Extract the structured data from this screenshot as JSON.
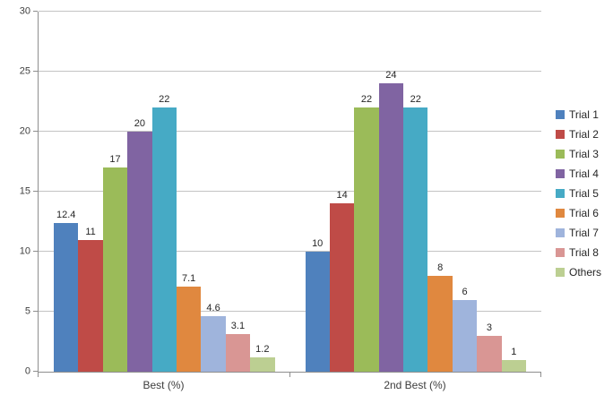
{
  "chart_data": {
    "type": "bar",
    "title": "",
    "xlabel": "",
    "ylabel": "",
    "categories": [
      "Best (%)",
      "2nd Best (%)"
    ],
    "series": [
      {
        "name": "Trial 1",
        "color": "#4F81BD",
        "values": [
          12.4,
          10
        ]
      },
      {
        "name": "Trial 2",
        "color": "#BF4B47",
        "values": [
          11,
          14
        ]
      },
      {
        "name": "Trial 3",
        "color": "#9BBB59",
        "values": [
          17,
          22
        ]
      },
      {
        "name": "Trial 4",
        "color": "#8064A2",
        "values": [
          20,
          24
        ]
      },
      {
        "name": "Trial 5",
        "color": "#46AAC5",
        "values": [
          22,
          22
        ]
      },
      {
        "name": "Trial 6",
        "color": "#E0883F",
        "values": [
          7.1,
          8
        ]
      },
      {
        "name": "Trial 7",
        "color": "#9FB4DC",
        "values": [
          4.6,
          6
        ]
      },
      {
        "name": "Trial 8",
        "color": "#D99694",
        "values": [
          3.1,
          3
        ]
      },
      {
        "name": "Others",
        "color": "#BCCF92",
        "values": [
          1.2,
          1
        ]
      }
    ],
    "ylim": [
      0,
      30
    ],
    "yticks": [
      0,
      5,
      10,
      15,
      20,
      25,
      30
    ],
    "grid": true,
    "data_labels": true,
    "legend_position": "right"
  },
  "colors": {
    "gridline": "#C3C3C3",
    "axis": "#8E8E8E",
    "axis_text": "#3F3F3F",
    "label_text": "#262626",
    "background": "#FFFFFF"
  }
}
